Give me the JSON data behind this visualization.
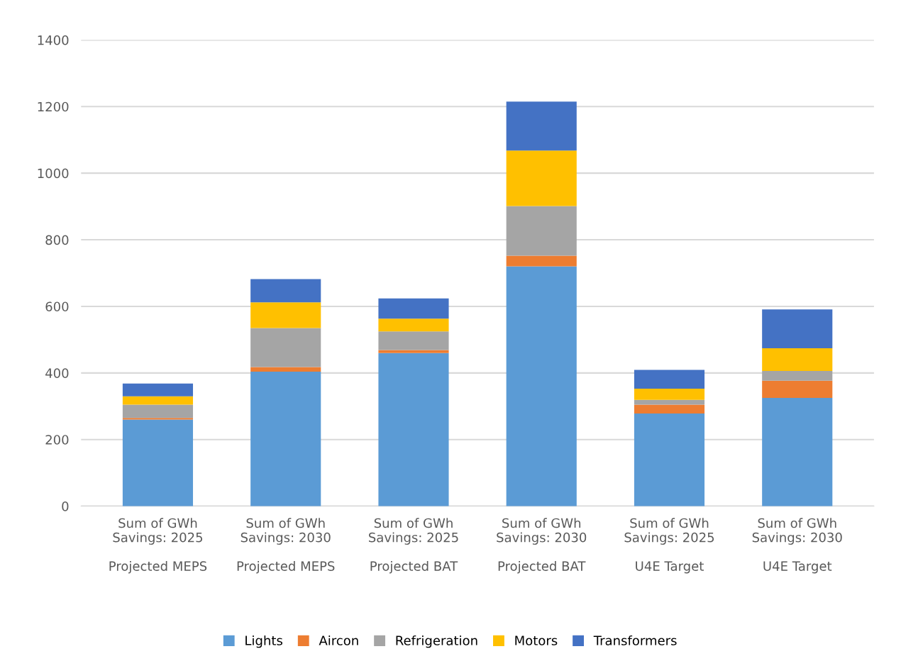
{
  "chart_data": {
    "type": "bar",
    "stacked": true,
    "categories": [
      "Sum of GWh\nSavings: 2025\n\nProjected MEPS",
      "Sum of GWh\nSavings: 2030\n\nProjected MEPS",
      "Sum of GWh\nSavings: 2025\n\nProjected BAT",
      "Sum of GWh\nSavings: 2030\n\nProjected BAT",
      "Sum of GWh\nSavings: 2025\n\nU4E Target",
      "Sum of GWh\nSavings: 2030\n\nU4E Target"
    ],
    "series": [
      {
        "name": "Lights",
        "color": "#5b9bd5",
        "values": [
          260,
          404,
          460,
          720,
          278,
          325
        ]
      },
      {
        "name": "Aircon",
        "color": "#ed7d31",
        "values": [
          5,
          14,
          9,
          32,
          27,
          52
        ]
      },
      {
        "name": "Refrigeration",
        "color": "#a5a5a5",
        "values": [
          40,
          117,
          56,
          149,
          14,
          29
        ]
      },
      {
        "name": "Motors",
        "color": "#ffc000",
        "values": [
          25,
          77,
          38,
          167,
          34,
          68
        ]
      },
      {
        "name": "Transformers",
        "color": "#4472c4",
        "values": [
          38,
          70,
          61,
          147,
          56,
          117
        ]
      }
    ],
    "ylim": [
      0,
      1400
    ],
    "yticks": [
      0,
      200,
      400,
      600,
      800,
      1000,
      1200,
      1400
    ],
    "grid": "y",
    "legend": "bottom"
  }
}
